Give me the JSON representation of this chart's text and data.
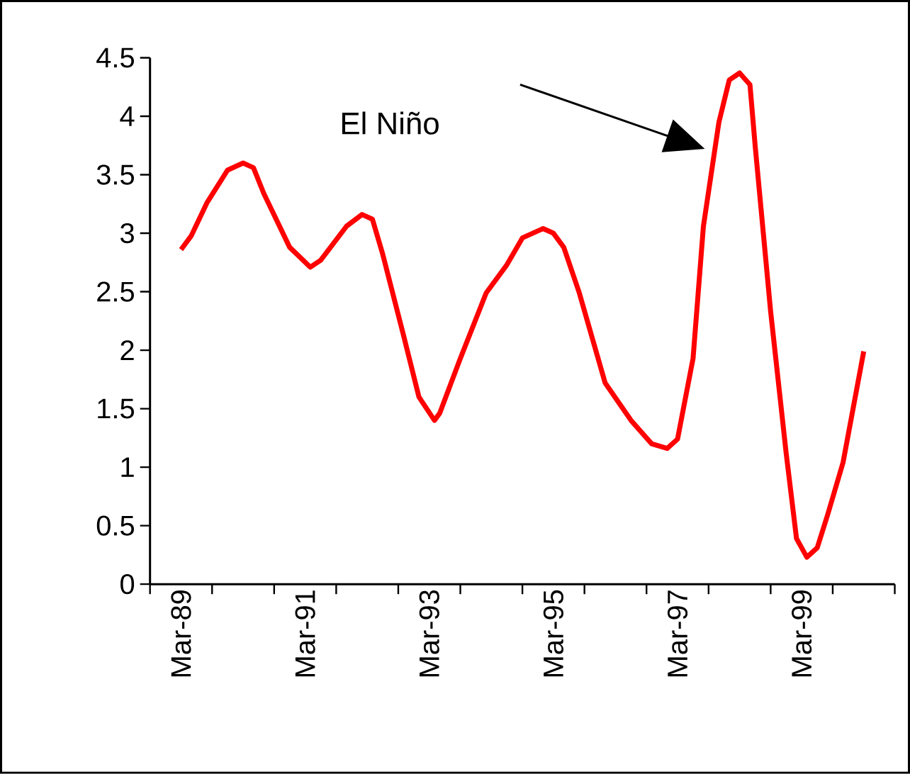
{
  "chart_data": {
    "type": "line",
    "x": [
      "1989-03",
      "1989-05",
      "1989-08",
      "1989-12",
      "1990-03",
      "1990-05",
      "1990-07",
      "1990-12",
      "1991-04",
      "1991-06",
      "1991-11",
      "1992-02",
      "1992-04",
      "1992-06",
      "1992-10",
      "1993-01",
      "1993-04",
      "1993-05",
      "1993-09",
      "1994-02",
      "1994-06",
      "1994-09",
      "1995-01",
      "1995-03",
      "1995-05",
      "1995-08",
      "1996-01",
      "1996-06",
      "1996-10",
      "1997-01",
      "1997-03",
      "1997-06",
      "1997-08",
      "1997-11",
      "1998-01",
      "1998-03",
      "1998-05",
      "1998-06",
      "1998-09",
      "1998-12",
      "1999-02",
      "1999-04",
      "1999-06",
      "1999-08",
      "1999-11",
      "2000-03"
    ],
    "series": [
      {
        "color": "#ff0000",
        "values": [
          2.86,
          2.98,
          3.26,
          3.54,
          3.6,
          3.56,
          3.34,
          2.88,
          2.71,
          2.77,
          3.06,
          3.16,
          3.12,
          2.82,
          2.13,
          1.6,
          1.4,
          1.46,
          1.93,
          2.49,
          2.73,
          2.96,
          3.04,
          3.0,
          2.88,
          2.49,
          1.72,
          1.4,
          1.2,
          1.16,
          1.24,
          1.93,
          3.06,
          3.95,
          4.31,
          4.37,
          4.27,
          3.75,
          2.33,
          1.12,
          0.39,
          0.23,
          0.31,
          0.59,
          1.04,
          1.99
        ]
      }
    ],
    "xlim": [
      "1988-09",
      "2000-09"
    ],
    "xticks": [
      {
        "value": "1988-09",
        "label": null
      },
      {
        "value": "1989-03",
        "label": "Mar-89"
      },
      {
        "value": "1989-09",
        "label": null
      },
      {
        "value": "1990-09",
        "label": null
      },
      {
        "value": "1991-03",
        "label": "Mar-91"
      },
      {
        "value": "1991-09",
        "label": null
      },
      {
        "value": "1992-09",
        "label": null
      },
      {
        "value": "1993-03",
        "label": "Mar-93"
      },
      {
        "value": "1993-09",
        "label": null
      },
      {
        "value": "1994-09",
        "label": null
      },
      {
        "value": "1995-03",
        "label": "Mar-95"
      },
      {
        "value": "1995-09",
        "label": null
      },
      {
        "value": "1996-09",
        "label": null
      },
      {
        "value": "1997-03",
        "label": "Mar-97"
      },
      {
        "value": "1997-09",
        "label": null
      },
      {
        "value": "1998-09",
        "label": null
      },
      {
        "value": "1999-03",
        "label": "Mar-99"
      },
      {
        "value": "1999-09",
        "label": null
      },
      {
        "value": "2000-09",
        "label": null
      }
    ],
    "ylim": [
      0,
      4.5
    ],
    "yticks": [
      0,
      0.5,
      1,
      1.5,
      2,
      2.5,
      3,
      3.5,
      4,
      4.5
    ],
    "annotations": [
      "El Niño"
    ]
  }
}
